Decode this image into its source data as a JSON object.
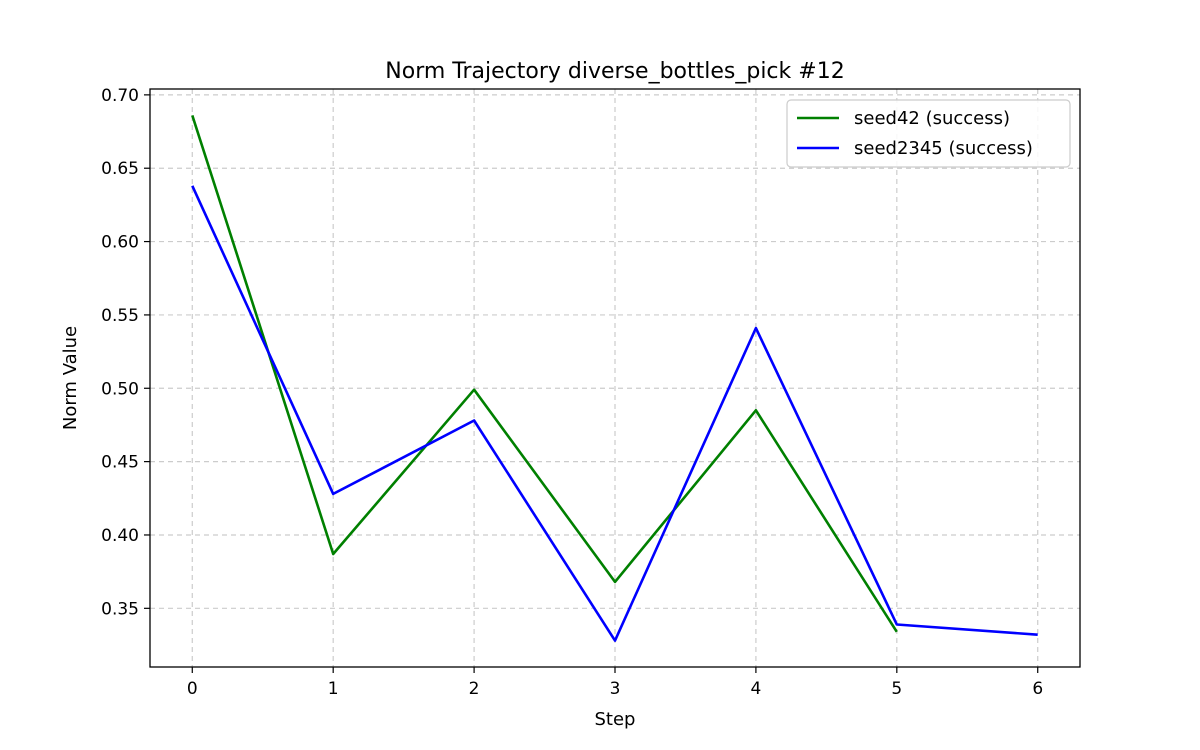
{
  "chart_data": {
    "type": "line",
    "title": "Norm Trajectory diverse_bottles_pick #12",
    "xlabel": "Step",
    "ylabel": "Norm Value",
    "xlim": [
      -0.3,
      6.3
    ],
    "ylim": [
      0.31,
      0.704
    ],
    "xticks": [
      0,
      1,
      2,
      3,
      4,
      5,
      6
    ],
    "yticks": [
      0.35,
      0.4,
      0.45,
      0.5,
      0.55,
      0.6,
      0.65,
      0.7
    ],
    "ytick_labels": [
      "0.35",
      "0.40",
      "0.45",
      "0.50",
      "0.55",
      "0.60",
      "0.65",
      "0.70"
    ],
    "grid": true,
    "legend_position": "upper right",
    "series": [
      {
        "name": "seed42 (success)",
        "color": "#008000",
        "x": [
          0,
          1,
          2,
          3,
          4,
          5
        ],
        "y": [
          0.686,
          0.387,
          0.499,
          0.368,
          0.485,
          0.334
        ]
      },
      {
        "name": "seed2345 (success)",
        "color": "#0000ff",
        "x": [
          0,
          1,
          2,
          3,
          4,
          5,
          6
        ],
        "y": [
          0.638,
          0.428,
          0.478,
          0.328,
          0.541,
          0.339,
          0.332
        ]
      }
    ]
  }
}
